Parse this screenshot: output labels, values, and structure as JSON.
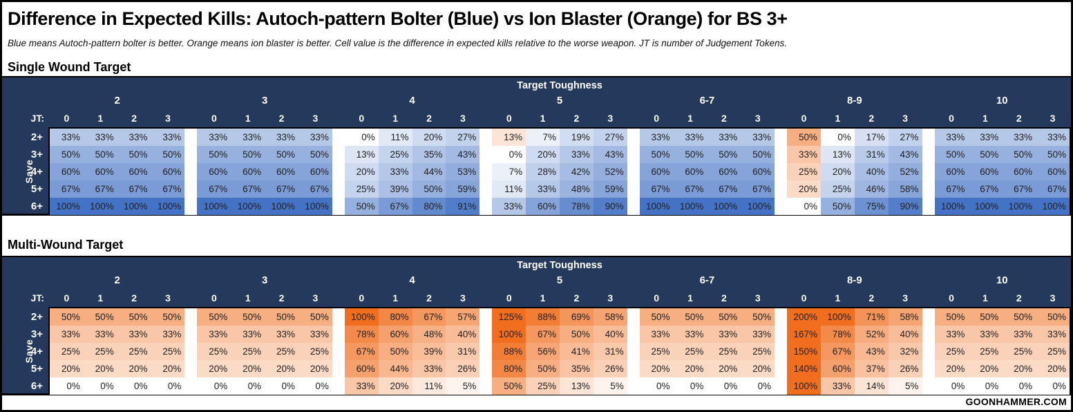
{
  "title": "Difference in Expected Kills: Autoch-pattern Bolter (Blue) vs Ion Blaster (Orange) for BS 3+",
  "subtitle": "Blue means Autoch-pattern bolter is better. Orange means ion blaster is better. Cell value is the difference in expected kills relative to the worse weapon. JT is number of Judgement Tokens.",
  "footer": "GOONHAMMER.COM",
  "colors": {
    "header_bg": "#24395C",
    "blue_max": "#4472C4",
    "orange_max": "#F06E1E",
    "zero_cell": "#FFFFFF",
    "cell_text": "#212121"
  },
  "chart_data": [
    {
      "type": "heatmap",
      "section_title": "Single Wound Target",
      "xlabel": "Target Toughness",
      "ylabel": "Save",
      "jt_label": "JT:",
      "toughness_groups": [
        "2",
        "3",
        "4",
        "5",
        "6-7",
        "8-9",
        "10"
      ],
      "jt_columns": [
        "0",
        "1",
        "2",
        "3"
      ],
      "save_rows": [
        "2+",
        "3+",
        "4+",
        "5+",
        "6+"
      ],
      "encoding": "signed percent difference in expected kills; positive = blue (bolter better), negative = orange (ion blaster better), 0 = white; cells display absolute value with % sign",
      "values": [
        [
          [
            33,
            33,
            33,
            33
          ],
          [
            33,
            33,
            33,
            33
          ],
          [
            0,
            11,
            20,
            27
          ],
          [
            -13,
            7,
            19,
            27
          ],
          [
            33,
            33,
            33,
            33
          ],
          [
            -50,
            0,
            17,
            27
          ],
          [
            33,
            33,
            33,
            33
          ]
        ],
        [
          [
            50,
            50,
            50,
            50
          ],
          [
            50,
            50,
            50,
            50
          ],
          [
            13,
            25,
            35,
            43
          ],
          [
            0,
            20,
            33,
            43
          ],
          [
            50,
            50,
            50,
            50
          ],
          [
            -33,
            13,
            31,
            43
          ],
          [
            50,
            50,
            50,
            50
          ]
        ],
        [
          [
            60,
            60,
            60,
            60
          ],
          [
            60,
            60,
            60,
            60
          ],
          [
            20,
            33,
            44,
            53
          ],
          [
            7,
            28,
            42,
            52
          ],
          [
            60,
            60,
            60,
            60
          ],
          [
            -25,
            20,
            40,
            52
          ],
          [
            60,
            60,
            60,
            60
          ]
        ],
        [
          [
            67,
            67,
            67,
            67
          ],
          [
            67,
            67,
            67,
            67
          ],
          [
            25,
            39,
            50,
            59
          ],
          [
            11,
            33,
            48,
            59
          ],
          [
            67,
            67,
            67,
            67
          ],
          [
            -20,
            25,
            46,
            58
          ],
          [
            67,
            67,
            67,
            67
          ]
        ],
        [
          [
            100,
            100,
            100,
            100
          ],
          [
            100,
            100,
            100,
            100
          ],
          [
            50,
            67,
            80,
            91
          ],
          [
            33,
            60,
            78,
            90
          ],
          [
            100,
            100,
            100,
            100
          ],
          [
            0,
            50,
            75,
            90
          ],
          [
            100,
            100,
            100,
            100
          ]
        ]
      ]
    },
    {
      "type": "heatmap",
      "section_title": "Multi-Wound Target",
      "xlabel": "Target Toughness",
      "ylabel": "Save",
      "jt_label": "JT:",
      "toughness_groups": [
        "2",
        "3",
        "4",
        "5",
        "6-7",
        "8-9",
        "10"
      ],
      "jt_columns": [
        "0",
        "1",
        "2",
        "3"
      ],
      "save_rows": [
        "2+",
        "3+",
        "4+",
        "5+",
        "6+"
      ],
      "encoding": "signed percent difference in expected kills; positive = blue (bolter better), negative = orange (ion blaster better), 0 = white; cells display absolute value with % sign",
      "values": [
        [
          [
            -50,
            -50,
            -50,
            -50
          ],
          [
            -50,
            -50,
            -50,
            -50
          ],
          [
            -100,
            -80,
            -67,
            -57
          ],
          [
            -125,
            -88,
            -69,
            -58
          ],
          [
            -50,
            -50,
            -50,
            -50
          ],
          [
            -200,
            -100,
            -71,
            -58
          ],
          [
            -50,
            -50,
            -50,
            -50
          ]
        ],
        [
          [
            -33,
            -33,
            -33,
            -33
          ],
          [
            -33,
            -33,
            -33,
            -33
          ],
          [
            -78,
            -60,
            -48,
            -40
          ],
          [
            -100,
            -67,
            -50,
            -40
          ],
          [
            -33,
            -33,
            -33,
            -33
          ],
          [
            -167,
            -78,
            -52,
            -40
          ],
          [
            -33,
            -33,
            -33,
            -33
          ]
        ],
        [
          [
            -25,
            -25,
            -25,
            -25
          ],
          [
            -25,
            -25,
            -25,
            -25
          ],
          [
            -67,
            -50,
            -39,
            -31
          ],
          [
            -88,
            -56,
            -41,
            -31
          ],
          [
            -25,
            -25,
            -25,
            -25
          ],
          [
            -150,
            -67,
            -43,
            -32
          ],
          [
            -25,
            -25,
            -25,
            -25
          ]
        ],
        [
          [
            -20,
            -20,
            -20,
            -20
          ],
          [
            -20,
            -20,
            -20,
            -20
          ],
          [
            -60,
            -44,
            -33,
            -26
          ],
          [
            -80,
            -50,
            -35,
            -26
          ],
          [
            -20,
            -20,
            -20,
            -20
          ],
          [
            -140,
            -60,
            -37,
            -26
          ],
          [
            -20,
            -20,
            -20,
            -20
          ]
        ],
        [
          [
            0,
            0,
            0,
            0
          ],
          [
            0,
            0,
            0,
            0
          ],
          [
            -33,
            -20,
            -11,
            -5
          ],
          [
            -50,
            -25,
            -13,
            -5
          ],
          [
            0,
            0,
            0,
            0
          ],
          [
            -100,
            -33,
            -14,
            -5
          ],
          [
            0,
            0,
            0,
            0
          ]
        ]
      ]
    }
  ]
}
